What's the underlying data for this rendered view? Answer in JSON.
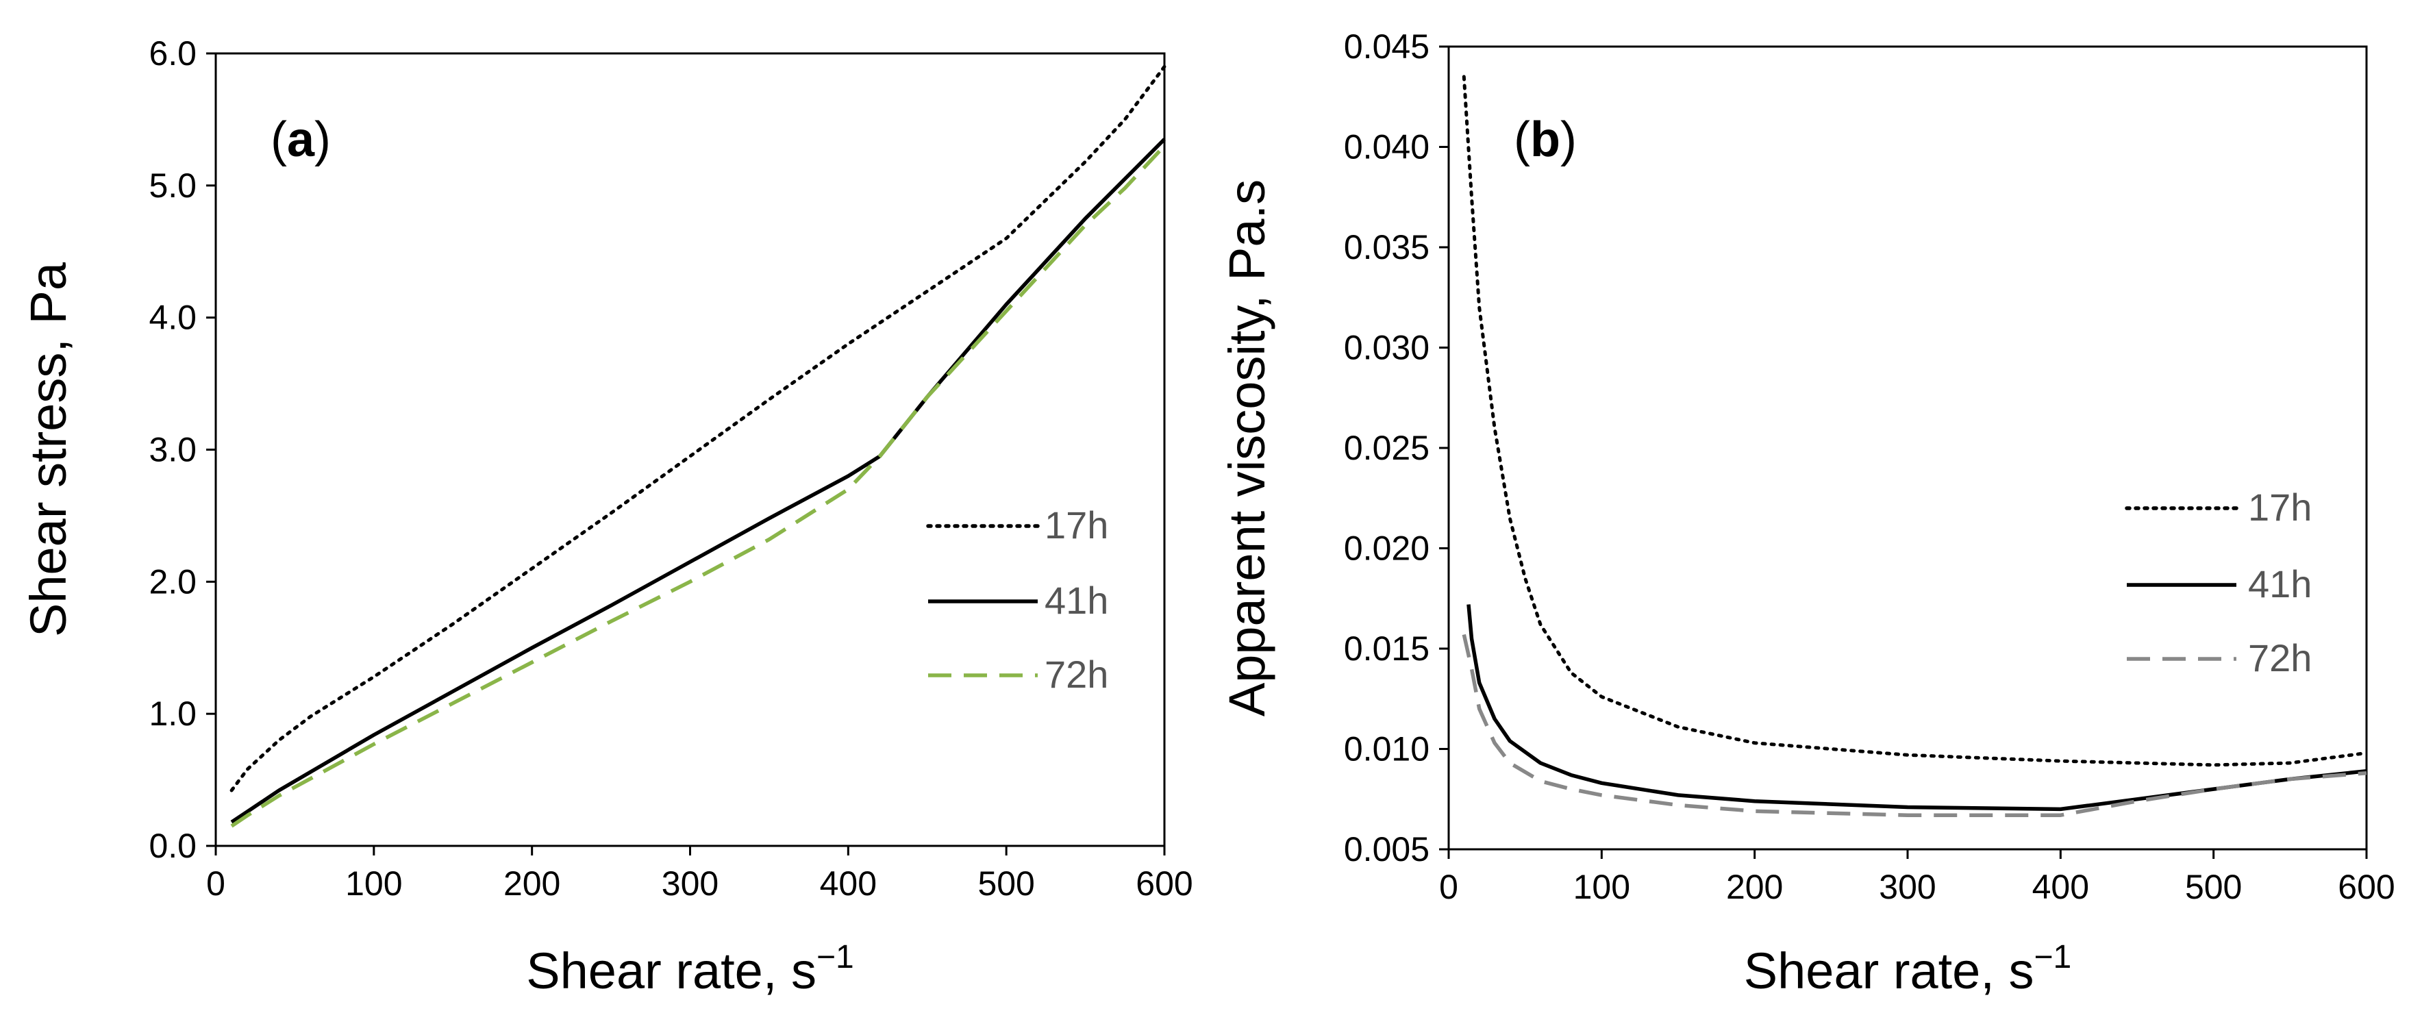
{
  "chart_data": [
    {
      "type": "line",
      "panel_label": "a",
      "xlabel": "Shear rate, s",
      "xlabel_sup": "−1",
      "ylabel": "Shear stress, Pa",
      "xlim": [
        0,
        600
      ],
      "ylim": [
        0,
        6
      ],
      "xticks": [
        "0",
        "100",
        "200",
        "300",
        "400",
        "500",
        "600"
      ],
      "yticks": [
        "0.0",
        "1.0",
        "2.0",
        "3.0",
        "4.0",
        "5.0",
        "6.0"
      ],
      "grid": false,
      "legend_position": "right",
      "series": [
        {
          "name": "17h",
          "style": "dotted",
          "color": "#000000",
          "x": [
            10,
            20,
            40,
            60,
            100,
            150,
            200,
            250,
            300,
            350,
            400,
            450,
            500,
            550,
            575,
            600
          ],
          "y": [
            0.42,
            0.58,
            0.8,
            0.98,
            1.28,
            1.68,
            2.1,
            2.52,
            2.95,
            3.38,
            3.8,
            4.2,
            4.6,
            5.18,
            5.5,
            5.9
          ]
        },
        {
          "name": "41h",
          "style": "solid",
          "color": "#000000",
          "x": [
            10,
            20,
            40,
            60,
            100,
            150,
            200,
            250,
            300,
            350,
            400,
            420,
            450,
            500,
            550,
            575,
            600
          ],
          "y": [
            0.18,
            0.26,
            0.42,
            0.56,
            0.84,
            1.17,
            1.5,
            1.82,
            2.15,
            2.48,
            2.8,
            2.95,
            3.4,
            4.1,
            4.75,
            5.05,
            5.35
          ]
        },
        {
          "name": "72h",
          "style": "dashed",
          "color": "#8ab549",
          "x": [
            10,
            20,
            40,
            60,
            100,
            150,
            200,
            250,
            300,
            350,
            400,
            420,
            450,
            500,
            550,
            575,
            600
          ],
          "y": [
            0.15,
            0.23,
            0.38,
            0.51,
            0.77,
            1.08,
            1.39,
            1.7,
            2.0,
            2.32,
            2.7,
            2.95,
            3.4,
            4.05,
            4.7,
            4.98,
            5.3
          ]
        }
      ]
    },
    {
      "type": "line",
      "panel_label": "b",
      "xlabel": "Shear rate, s",
      "xlabel_sup": "−1",
      "ylabel": "Apparent viscosity, Pa.s",
      "xlim": [
        0,
        600
      ],
      "ylim": [
        0.005,
        0.045
      ],
      "xticks": [
        "0",
        "100",
        "200",
        "300",
        "400",
        "500",
        "600"
      ],
      "yticks": [
        "0.005",
        "0.010",
        "0.015",
        "0.020",
        "0.025",
        "0.030",
        "0.035",
        "0.040",
        "0.045"
      ],
      "grid": false,
      "legend_position": "right",
      "series": [
        {
          "name": "17h",
          "style": "dotted",
          "color": "#000000",
          "x": [
            10,
            15,
            20,
            30,
            40,
            50,
            60,
            80,
            100,
            150,
            200,
            300,
            400,
            500,
            550,
            600
          ],
          "y": [
            0.0435,
            0.0375,
            0.032,
            0.026,
            0.0215,
            0.0185,
            0.0162,
            0.0138,
            0.0126,
            0.0111,
            0.0103,
            0.0097,
            0.0094,
            0.0092,
            0.0093,
            0.0098
          ]
        },
        {
          "name": "41h",
          "style": "solid",
          "color": "#000000",
          "x": [
            13,
            15,
            20,
            30,
            40,
            60,
            80,
            100,
            150,
            200,
            300,
            400,
            450,
            500,
            550,
            600
          ],
          "y": [
            0.0172,
            0.0155,
            0.0133,
            0.0115,
            0.0104,
            0.0093,
            0.0087,
            0.0083,
            0.0077,
            0.0074,
            0.0071,
            0.007,
            0.0075,
            0.008,
            0.0085,
            0.0089
          ]
        },
        {
          "name": "72h",
          "style": "dashed",
          "color": "#888888",
          "x": [
            10,
            15,
            20,
            30,
            40,
            60,
            80,
            100,
            150,
            200,
            300,
            400,
            450,
            500,
            550,
            600
          ],
          "y": [
            0.0157,
            0.014,
            0.012,
            0.0103,
            0.0093,
            0.0084,
            0.008,
            0.0077,
            0.0072,
            0.0069,
            0.0067,
            0.0067,
            0.0074,
            0.008,
            0.0085,
            0.0088
          ]
        }
      ]
    }
  ]
}
